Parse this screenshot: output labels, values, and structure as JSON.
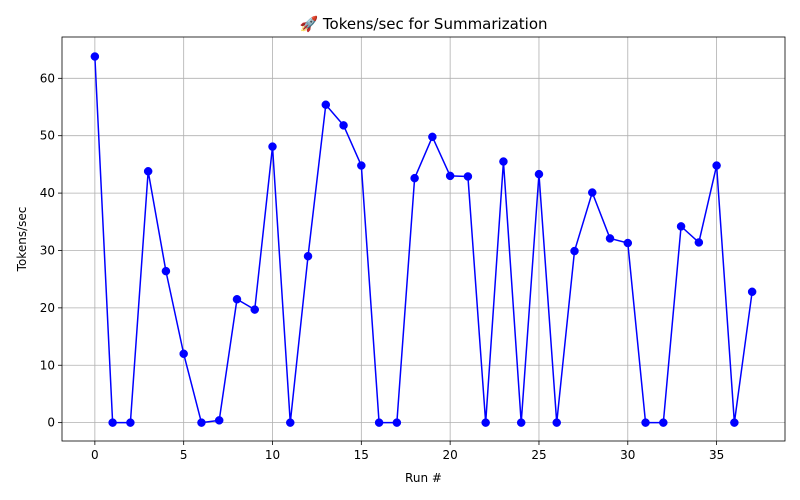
{
  "chart_data": {
    "type": "line",
    "title": "🚀 Tokens/sec for Summarization",
    "xlabel": "Run #",
    "ylabel": "Tokens/sec",
    "xlim": [
      -1.85,
      38.85
    ],
    "ylim": [
      -3.2,
      67.2
    ],
    "xticks": [
      0,
      5,
      10,
      15,
      20,
      25,
      30,
      35
    ],
    "yticks": [
      0,
      10,
      20,
      30,
      40,
      50,
      60
    ],
    "grid": true,
    "legend": "none",
    "line_color": "#0000ff",
    "marker_color": "#0000ff",
    "series": [
      {
        "x": [
          0,
          1,
          2,
          3,
          4,
          5,
          6,
          7,
          8,
          9,
          10,
          11,
          12,
          13,
          14,
          15,
          16,
          17,
          18,
          19,
          20,
          21,
          22,
          23,
          24,
          25,
          26,
          27,
          28,
          29,
          30,
          31,
          32,
          33,
          34,
          35,
          36,
          37
        ],
        "values": [
          63.8,
          0,
          0,
          43.8,
          26.4,
          12.0,
          0,
          0.4,
          21.5,
          19.7,
          48.1,
          0,
          29.0,
          55.4,
          51.8,
          44.8,
          0,
          0,
          42.6,
          49.8,
          43.0,
          42.9,
          0,
          45.5,
          0,
          43.3,
          0,
          29.9,
          40.1,
          32.1,
          31.3,
          0,
          0,
          34.2,
          31.4,
          44.8,
          0,
          22.8
        ]
      }
    ]
  }
}
